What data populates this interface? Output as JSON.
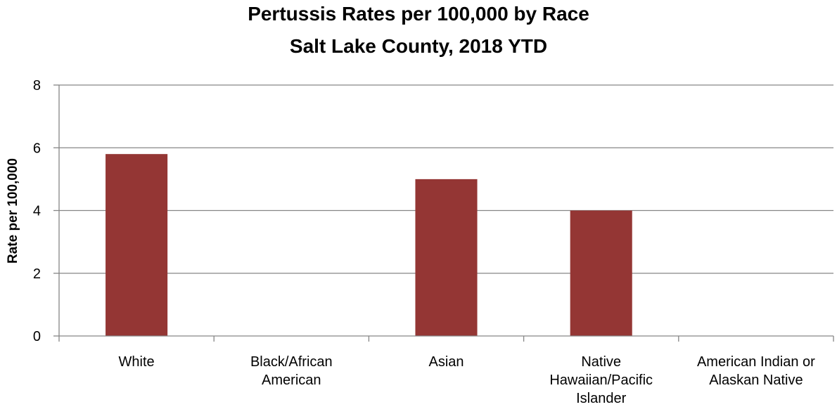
{
  "chart_data": {
    "type": "bar",
    "title_line1": "Pertussis Rates per 100,000 by Race",
    "title_line2": "Salt Lake County, 2018 YTD",
    "ylabel": "Rate per 100,000",
    "xlabel": "",
    "ylim": [
      0,
      8
    ],
    "yticks": [
      0,
      2,
      4,
      6,
      8
    ],
    "grid": true,
    "categories": [
      [
        "White"
      ],
      [
        "Black/African",
        "American"
      ],
      [
        "Asian"
      ],
      [
        "Native",
        "Hawaiian/Pacific",
        "Islander"
      ],
      [
        "American Indian or",
        "Alaskan Native"
      ]
    ],
    "values": [
      5.8,
      0,
      5.0,
      4.0,
      0
    ],
    "bar_color": "#943634"
  }
}
